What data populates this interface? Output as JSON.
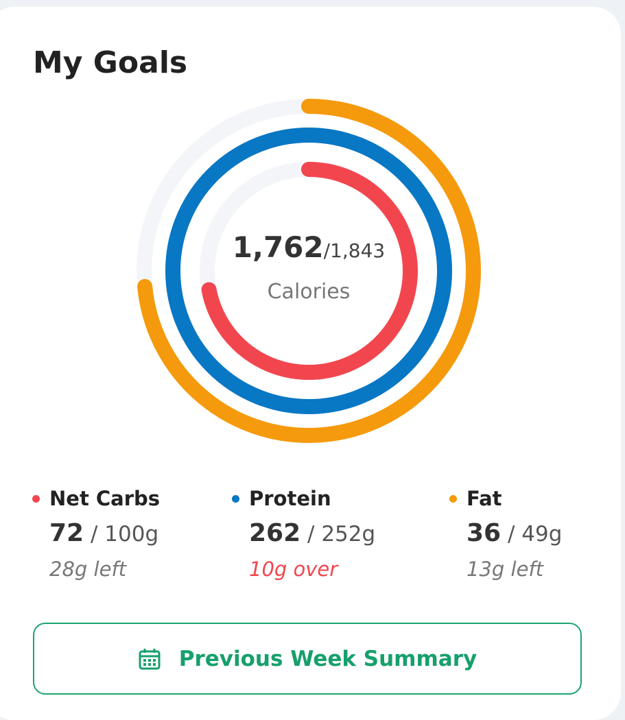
{
  "header": {
    "title": "My Goals"
  },
  "calories": {
    "current": "1,762",
    "goal": "/1,843",
    "label": "Calories"
  },
  "macros": [
    {
      "name": "Net Carbs",
      "current": 72,
      "separator": "/",
      "goal": 100,
      "unit": "g",
      "status": "28g left",
      "over": false,
      "color": "#f2464f"
    },
    {
      "name": "Protein",
      "current": 262,
      "separator": "/",
      "goal": 252,
      "unit": "g",
      "status": "10g over",
      "over": true,
      "color": "#0877c4"
    },
    {
      "name": "Fat",
      "current": 36,
      "separator": "/",
      "goal": 49,
      "unit": "g",
      "status": "13g left",
      "over": false,
      "color": "#f59a0c"
    }
  ],
  "button": {
    "label": "Previous Week Summary"
  }
}
